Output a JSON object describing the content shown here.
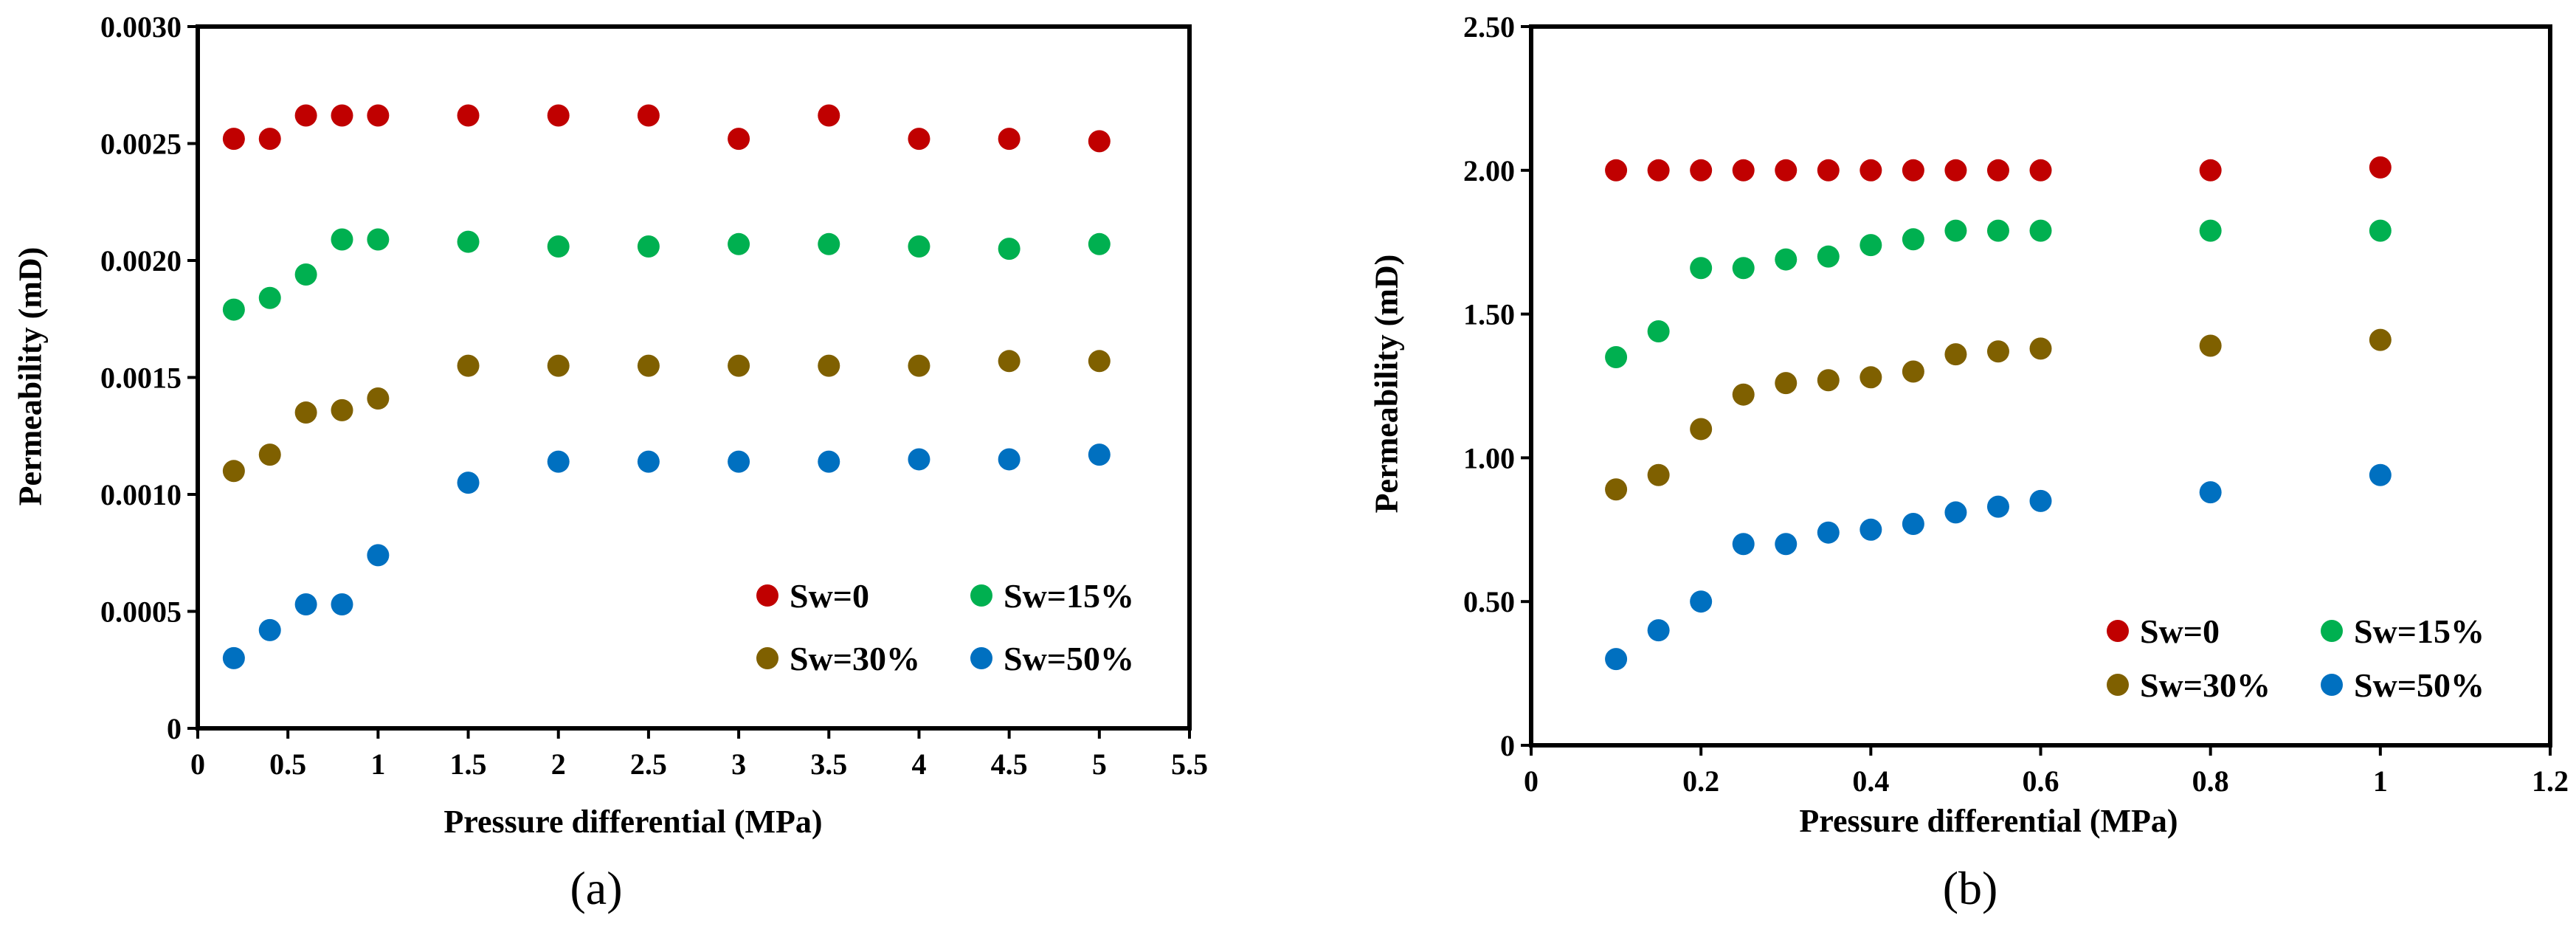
{
  "chart_data": [
    {
      "type": "scatter",
      "panel_label": "(a)",
      "xlabel": "Pressure differential  (MPa)",
      "ylabel": "Permeability  (mD)",
      "xlim": [
        0,
        5.5
      ],
      "ylim": [
        0,
        0.003
      ],
      "xticks": [
        "0",
        "0.5",
        "1",
        "1.5",
        "2",
        "2.5",
        "3",
        "3.5",
        "4",
        "4.5",
        "5",
        "5.5"
      ],
      "yticks": [
        "0",
        "0.0005",
        "0.0010",
        "0.0015",
        "0.0020",
        "0.0025",
        "0.0030"
      ],
      "legend_position": "bottom-right",
      "x": [
        0.2,
        0.4,
        0.6,
        0.8,
        1.0,
        1.5,
        2.0,
        2.5,
        3.0,
        3.5,
        4.0,
        4.5,
        5.0
      ],
      "series": [
        {
          "name": "Sw=0",
          "color": "#c00000",
          "values": [
            0.00252,
            0.00252,
            0.00262,
            0.00262,
            0.00262,
            0.00262,
            0.00262,
            0.00262,
            0.00252,
            0.00262,
            0.00252,
            0.00252,
            0.00251
          ]
        },
        {
          "name": "Sw=15%",
          "color": "#00b050",
          "values": [
            0.00179,
            0.00184,
            0.00194,
            0.00209,
            0.00209,
            0.00208,
            0.00206,
            0.00206,
            0.00207,
            0.00207,
            0.00206,
            0.00205,
            0.00207
          ]
        },
        {
          "name": "Sw=30%",
          "color": "#7f6000",
          "values": [
            0.0011,
            0.00117,
            0.00135,
            0.00136,
            0.00141,
            0.00155,
            0.00155,
            0.00155,
            0.00155,
            0.00155,
            0.00155,
            0.00157,
            0.00157
          ]
        },
        {
          "name": "Sw=50%",
          "color": "#0070c0",
          "values": [
            0.0003,
            0.00042,
            0.00053,
            0.00053,
            0.00074,
            0.00105,
            0.00114,
            0.00114,
            0.00114,
            0.00114,
            0.00115,
            0.00115,
            0.00117
          ]
        }
      ]
    },
    {
      "type": "scatter",
      "panel_label": "(b)",
      "xlabel": "Pressure differential  (MPa)",
      "ylabel": "Permeability  (mD)",
      "xlim": [
        0,
        1.2
      ],
      "ylim": [
        0,
        2.5
      ],
      "xticks": [
        "0",
        "0.2",
        "0.4",
        "0.6",
        "0.8",
        "1",
        "1.2"
      ],
      "yticks": [
        "0",
        "0.50",
        "1.00",
        "1.50",
        "2.00",
        "2.50"
      ],
      "legend_position": "bottom-right",
      "x": [
        0.1,
        0.15,
        0.2,
        0.25,
        0.3,
        0.35,
        0.4,
        0.45,
        0.5,
        0.55,
        0.6,
        0.8,
        1.0
      ],
      "series": [
        {
          "name": "Sw=0",
          "color": "#c00000",
          "values": [
            2.0,
            2.0,
            2.0,
            2.0,
            2.0,
            2.0,
            2.0,
            2.0,
            2.0,
            2.0,
            2.0,
            2.0,
            2.01
          ]
        },
        {
          "name": "Sw=15%",
          "color": "#00b050",
          "values": [
            1.35,
            1.44,
            1.66,
            1.66,
            1.69,
            1.7,
            1.74,
            1.76,
            1.79,
            1.79,
            1.79,
            1.79,
            1.79
          ]
        },
        {
          "name": "Sw=30%",
          "color": "#7f6000",
          "values": [
            0.89,
            0.94,
            1.1,
            1.22,
            1.26,
            1.27,
            1.28,
            1.3,
            1.36,
            1.37,
            1.38,
            1.39,
            1.41
          ]
        },
        {
          "name": "Sw=50%",
          "color": "#0070c0",
          "values": [
            0.3,
            0.4,
            0.5,
            0.7,
            0.7,
            0.74,
            0.75,
            0.77,
            0.81,
            0.83,
            0.85,
            0.88,
            0.94
          ]
        }
      ]
    }
  ]
}
